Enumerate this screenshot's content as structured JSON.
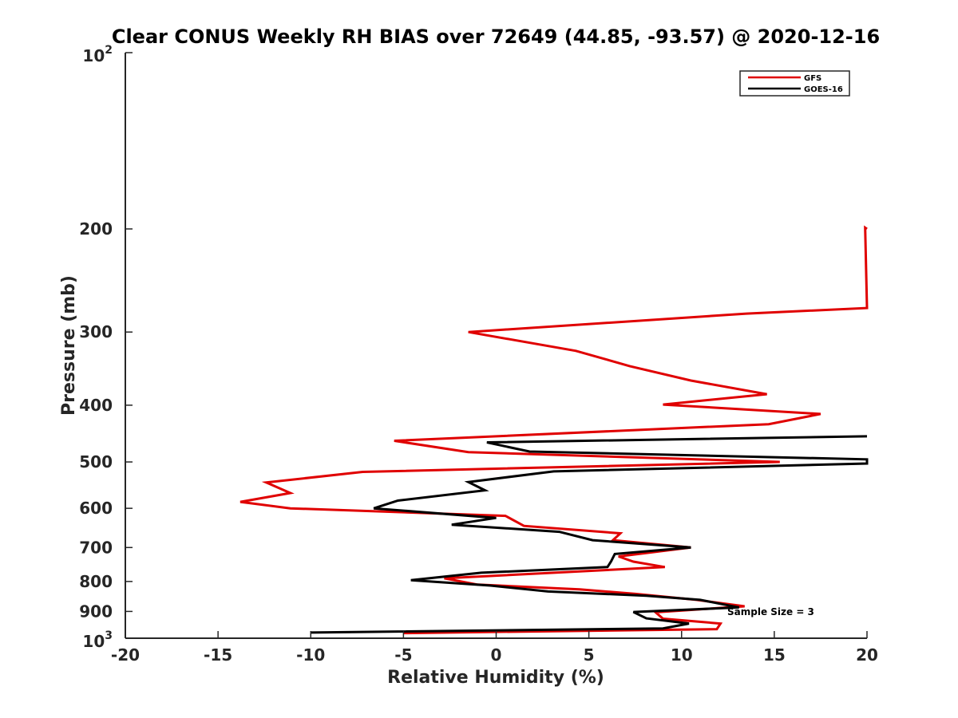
{
  "chart_data": {
    "type": "line",
    "title": "Clear CONUS Weekly RH BIAS over 72649 (44.85, -93.57) @ 2020-12-16",
    "xlabel": "Relative Humidity (%)",
    "ylabel": "Pressure (mb)",
    "xlim": [
      -20,
      20
    ],
    "ylim": [
      100,
      1000
    ],
    "y_scale": "log",
    "y_reversed": true,
    "grid": false,
    "legend_position": "top-right",
    "x_ticks": [
      "-20",
      "-15",
      "-10",
      "-5",
      "0",
      "5",
      "10",
      "15",
      "20"
    ],
    "y_ticks": [
      "200",
      "300",
      "400",
      "500",
      "600",
      "700",
      "800",
      "900"
    ],
    "y_tick_values": [
      200,
      300,
      400,
      500,
      600,
      700,
      800,
      900
    ],
    "y_top_label": {
      "base": "10",
      "exp": "2"
    },
    "y_bottom_label": {
      "base": "10",
      "exp": "3"
    },
    "series": [
      {
        "name": "GFS",
        "color": "#e00000",
        "points": [
          [
            20,
            200
          ],
          [
            19.9,
            199
          ],
          [
            20,
            273
          ],
          [
            13.5,
            279
          ],
          [
            -1.5,
            300
          ],
          [
            4.3,
            323
          ],
          [
            7.2,
            343
          ],
          [
            10.5,
            363
          ],
          [
            14.6,
            383
          ],
          [
            9.0,
            399
          ],
          [
            17.5,
            414
          ],
          [
            14.7,
            431
          ],
          [
            -5.5,
            460
          ],
          [
            -1.5,
            481
          ],
          [
            15.3,
            500
          ],
          [
            -7.2,
            520
          ],
          [
            -12.4,
            542
          ],
          [
            -11.1,
            565
          ],
          [
            -13.8,
            585
          ],
          [
            -11.1,
            600
          ],
          [
            0.5,
            618
          ],
          [
            1.5,
            643
          ],
          [
            6.7,
            662
          ],
          [
            6.3,
            680
          ],
          [
            10.5,
            700
          ],
          [
            6.6,
            725
          ],
          [
            7.4,
            740
          ],
          [
            9.1,
            756
          ],
          [
            -2.8,
            790
          ],
          [
            -1.0,
            810
          ],
          [
            4.5,
            825
          ],
          [
            7.5,
            840
          ],
          [
            10.8,
            860
          ],
          [
            13.4,
            882
          ],
          [
            8.6,
            903
          ],
          [
            9.0,
            926
          ],
          [
            12.1,
            944
          ],
          [
            11.9,
            965
          ],
          [
            -5.0,
            980
          ]
        ]
      },
      {
        "name": "GOES-16",
        "color": "#000000",
        "points": [
          [
            20,
            452
          ],
          [
            -0.5,
            463
          ],
          [
            1.8,
            480
          ],
          [
            20,
            495
          ],
          [
            20,
            503
          ],
          [
            3.1,
            519
          ],
          [
            -1.5,
            541
          ],
          [
            -0.6,
            559
          ],
          [
            -5.3,
            582
          ],
          [
            -6.6,
            600
          ],
          [
            0.0,
            623
          ],
          [
            -2.4,
            640
          ],
          [
            3.4,
            658
          ],
          [
            5.2,
            680
          ],
          [
            10.5,
            700
          ],
          [
            6.4,
            718
          ],
          [
            6.2,
            739
          ],
          [
            6.0,
            756
          ],
          [
            -0.8,
            773
          ],
          [
            -4.6,
            796
          ],
          [
            -0.3,
            813
          ],
          [
            2.8,
            832
          ],
          [
            8.1,
            846
          ],
          [
            11.0,
            860
          ],
          [
            12.3,
            876
          ],
          [
            13.1,
            886
          ],
          [
            7.4,
            902
          ],
          [
            8.1,
            925
          ],
          [
            10.4,
            944
          ],
          [
            9.0,
            962
          ],
          [
            -10.0,
            978
          ]
        ]
      }
    ],
    "annotation": "Sample Size = 3"
  }
}
